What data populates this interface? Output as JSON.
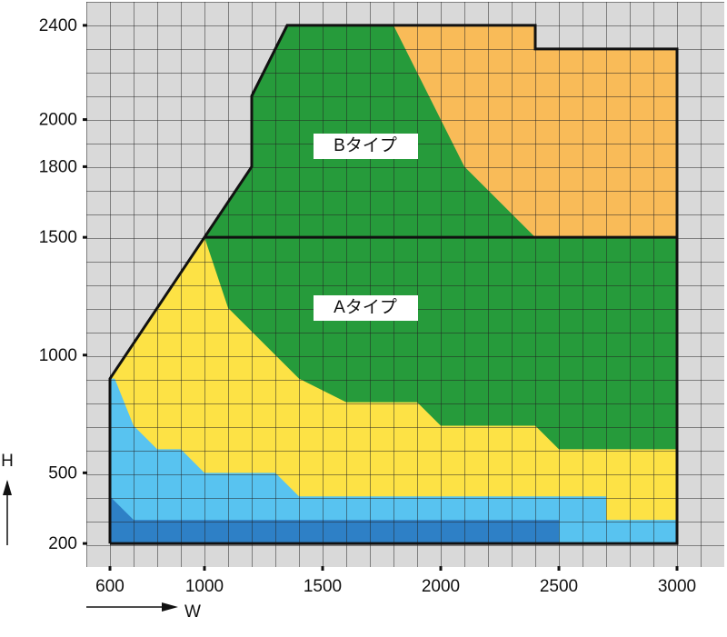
{
  "chart_data": {
    "type": "region",
    "x_label": "W",
    "y_label": "H",
    "xlim": [
      500,
      3200
    ],
    "ylim": [
      100,
      2500
    ],
    "xticks": [
      600,
      1000,
      1500,
      2000,
      2500,
      3000
    ],
    "yticks": [
      200,
      500,
      1000,
      1500,
      1800,
      2000,
      2400
    ],
    "background": "#d9d9d9",
    "regions": [
      {
        "color": "#269b3b",
        "x": [
          600,
          600,
          1000,
          1200,
          1200,
          1350,
          2400,
          2400,
          3000,
          3000
        ],
        "y": [
          200,
          900,
          1500,
          1800,
          2100,
          2400,
          2400,
          2300,
          2300,
          200
        ]
      },
      {
        "color": "#f9bb58",
        "x": [
          1800,
          2400,
          2400,
          3000,
          3000,
          2400,
          2100,
          2000
        ],
        "y": [
          2400,
          2400,
          2300,
          2300,
          1500,
          1500,
          1800,
          2000
        ]
      },
      {
        "color": "#fde245",
        "x": [
          600,
          600,
          1000,
          1100,
          1400,
          1600,
          1900,
          2000,
          2400,
          2500,
          3000,
          3000
        ],
        "y": [
          200,
          900,
          1500,
          1200,
          900,
          800,
          800,
          700,
          700,
          600,
          600,
          200
        ]
      },
      {
        "color": "#58c3f0",
        "x": [
          600,
          600,
          620,
          700,
          800,
          900,
          1000,
          1300,
          1400,
          2700,
          2700,
          3000,
          3000
        ],
        "y": [
          200,
          900,
          900,
          700,
          600,
          600,
          500,
          500,
          400,
          400,
          300,
          300,
          200
        ]
      },
      {
        "color": "#2e80c6",
        "x": [
          600,
          600,
          700,
          2500,
          2500
        ],
        "y": [
          200,
          400,
          300,
          300,
          200
        ]
      }
    ],
    "outline": {
      "x": [
        600,
        600,
        1000,
        1200,
        1200,
        1350,
        2400,
        2400,
        3000,
        3000,
        600
      ],
      "y": [
        200,
        900,
        1500,
        1800,
        2100,
        2400,
        2400,
        2300,
        2300,
        200,
        200
      ]
    },
    "divider": {
      "x": [
        1000,
        3000
      ],
      "y": [
        1500,
        1500
      ]
    },
    "annotations": [
      "Bタイプ",
      "Aタイプ"
    ]
  }
}
